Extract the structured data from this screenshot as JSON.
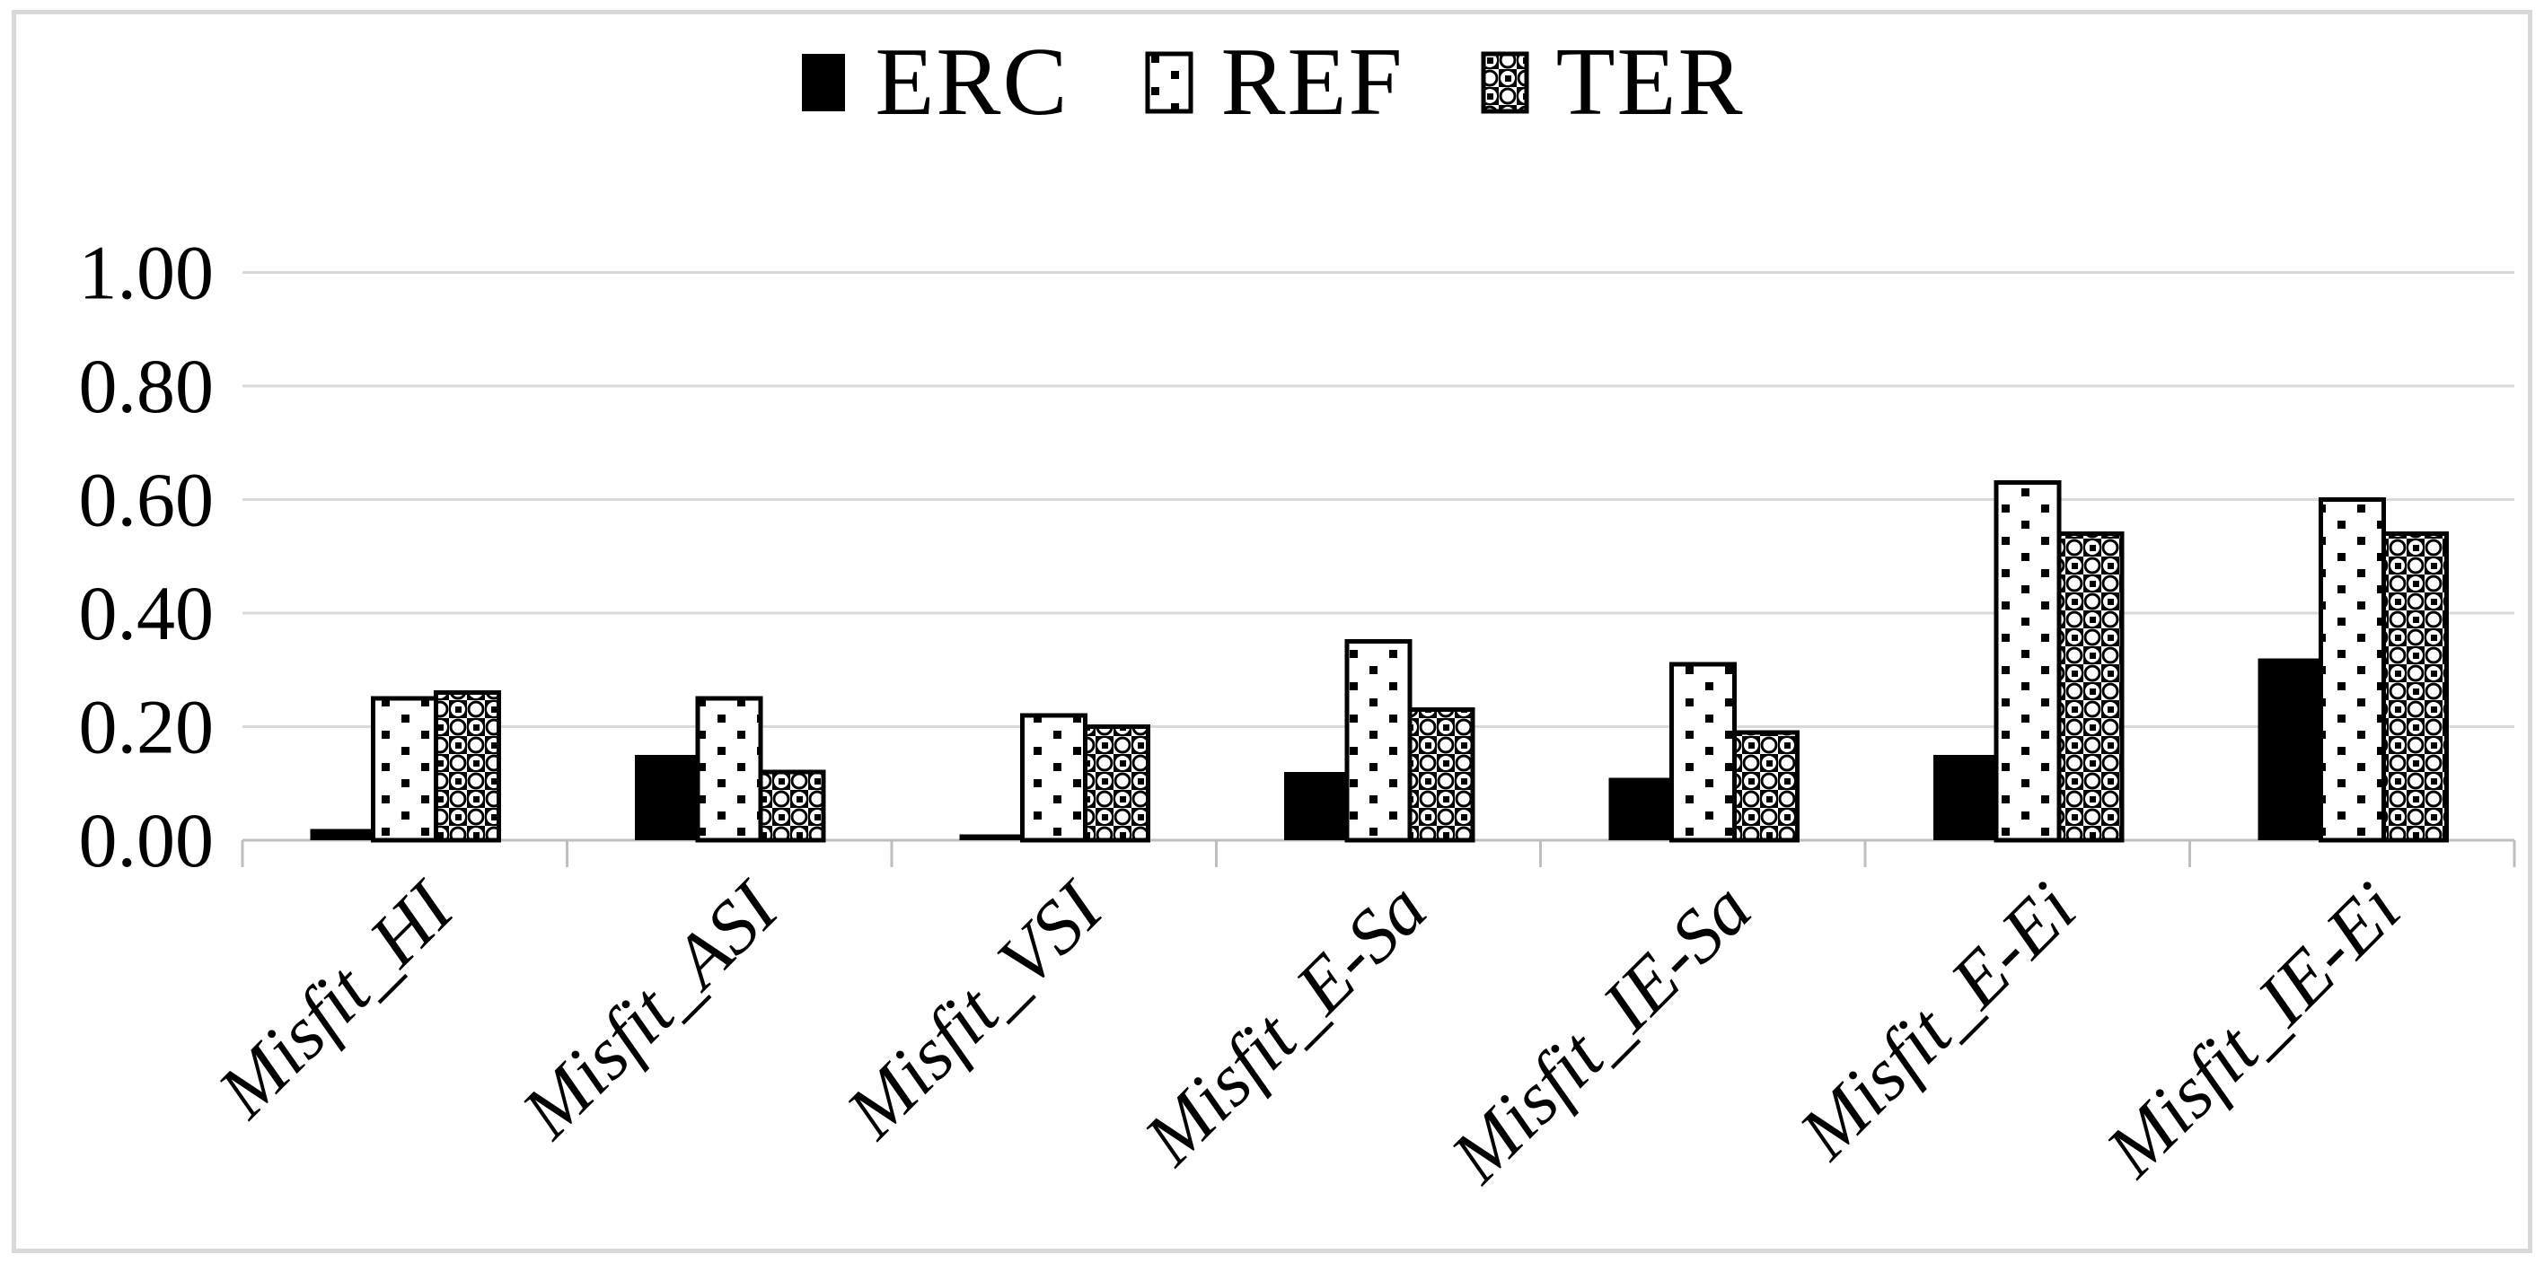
{
  "figure": {
    "kind": "bar-chart-figure"
  },
  "legend": {
    "items": [
      {
        "label": "ERC",
        "swatch": "solid-black"
      },
      {
        "label": "REF",
        "swatch": "dotted-pattern"
      },
      {
        "label": "TER",
        "swatch": "checkered-pattern"
      }
    ]
  },
  "chart_data": {
    "type": "bar",
    "title": "",
    "xlabel": "",
    "ylabel": "",
    "categories": [
      "Misfit_HI",
      "Misfit_ASI",
      "Misfit_VSI",
      "Misfit_E-Sa",
      "Misfit_IE-Sa",
      "Misfit_E-Ei",
      "Misfit_IE-Ei"
    ],
    "series": [
      {
        "name": "ERC",
        "pattern": "solid",
        "values": [
          0.02,
          0.15,
          0.01,
          0.12,
          0.11,
          0.15,
          0.32
        ]
      },
      {
        "name": "REF",
        "pattern": "dots",
        "values": [
          0.25,
          0.25,
          0.22,
          0.35,
          0.31,
          0.63,
          0.6
        ]
      },
      {
        "name": "TER",
        "pattern": "checker",
        "values": [
          0.26,
          0.12,
          0.2,
          0.23,
          0.19,
          0.54,
          0.54
        ]
      }
    ],
    "ylim": [
      0,
      1.0
    ],
    "y_ticks": [
      {
        "label": "0.00",
        "value": 0.0
      },
      {
        "label": "0.20",
        "value": 0.2
      },
      {
        "label": "0.40",
        "value": 0.4
      },
      {
        "label": "0.60",
        "value": 0.6
      },
      {
        "label": "0.80",
        "value": 0.8
      },
      {
        "label": "1.00",
        "value": 1.0
      }
    ],
    "grid": true,
    "legend_position": "top-center",
    "colors": {
      "bar_solid": "#000000",
      "bar_border": "#000000",
      "gridline": "#d9d9d9",
      "axis": "#bfbfbf",
      "text": "#000000",
      "frame": "#d9d9d9",
      "background": "#ffffff"
    }
  }
}
